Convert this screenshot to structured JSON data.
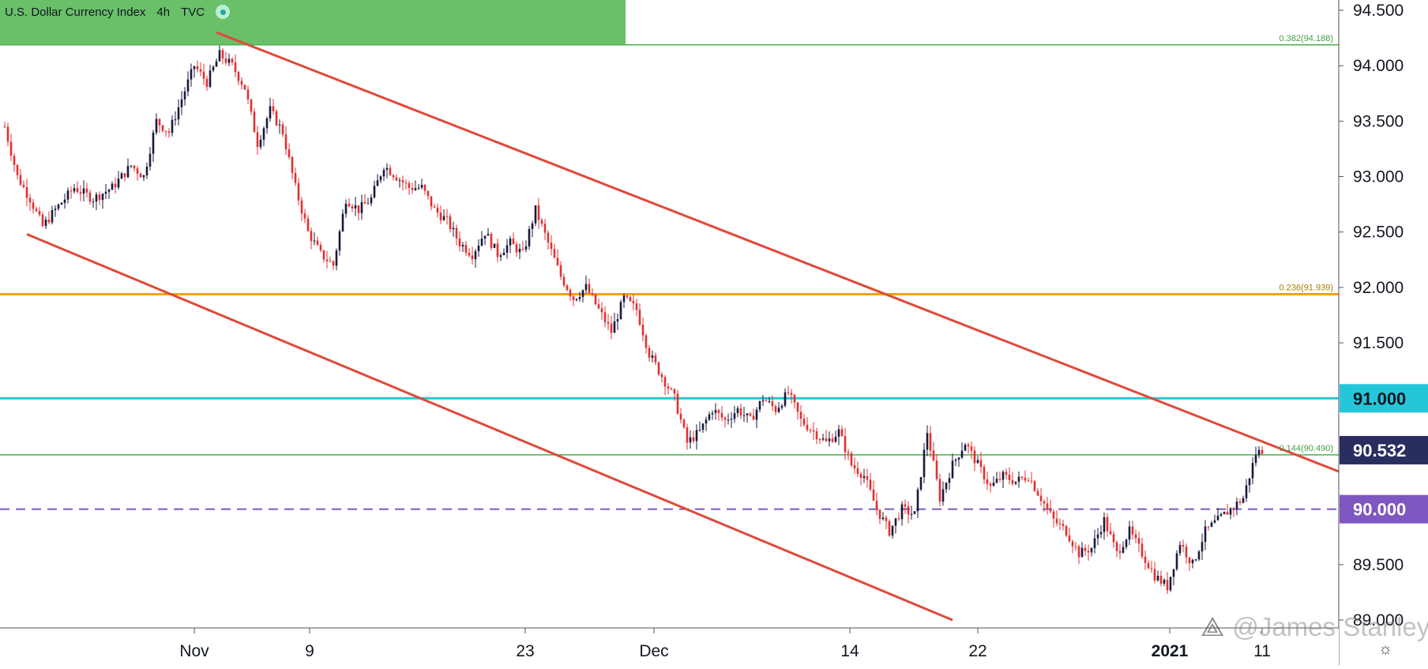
{
  "header": {
    "symbol": "U.S. Dollar Currency Index",
    "interval": "4h",
    "source": "TVC",
    "status_icon": "green-dot-icon"
  },
  "watermark": {
    "logo_icon": "tradingview-logo-icon",
    "text": "@James Stanley"
  },
  "settings_icon": "gear-icon",
  "colors": {
    "up_candle": "#1a1a3e",
    "down_candle": "#e03131",
    "channel": "#e0493a",
    "fib_zone": "#6abf69",
    "fib_line": "#4caf50",
    "fib_orange": "#f0a30a",
    "cyan": "#26c6da",
    "purple": "#7e57c2",
    "last_price": "#2a2e5f"
  },
  "chart_data": {
    "type": "candlestick",
    "title": "U.S. Dollar Currency Index 4h TVC",
    "ylim": [
      89.0,
      94.6
    ],
    "y_ticks": [
      "94.500",
      "94.000",
      "93.500",
      "93.000",
      "92.500",
      "92.000",
      "91.500",
      "91.000",
      "90.500",
      "90.000",
      "89.500",
      "89.000"
    ],
    "x_ticks": [
      "Nov",
      "9",
      "23",
      "Dec",
      "14",
      "22",
      "2021",
      "11"
    ],
    "last_price": "90.532",
    "horizontal_levels": [
      {
        "label": "0.382(94.188)",
        "value": 94.188,
        "kind": "fib"
      },
      {
        "label": "0.236(91.939)",
        "value": 91.939,
        "kind": "fib-orange"
      },
      {
        "label": "0.144(90.490)",
        "value": 90.49,
        "kind": "fib"
      },
      {
        "label": "91.000",
        "value": 91.0,
        "kind": "support-resistance"
      },
      {
        "label": "90.000",
        "value": 90.0,
        "kind": "dashed"
      }
    ],
    "price_path": [
      [
        0,
        93.45
      ],
      [
        4,
        93.0
      ],
      [
        8,
        92.8
      ],
      [
        12,
        92.55
      ],
      [
        16,
        92.7
      ],
      [
        22,
        92.9
      ],
      [
        28,
        92.8
      ],
      [
        34,
        92.9
      ],
      [
        40,
        93.1
      ],
      [
        44,
        93.0
      ],
      [
        48,
        93.5
      ],
      [
        52,
        93.4
      ],
      [
        56,
        93.7
      ],
      [
        60,
        94.0
      ],
      [
        64,
        93.85
      ],
      [
        68,
        94.1
      ],
      [
        72,
        94.0
      ],
      [
        76,
        93.8
      ],
      [
        80,
        93.3
      ],
      [
        84,
        93.6
      ],
      [
        88,
        93.4
      ],
      [
        92,
        92.9
      ],
      [
        96,
        92.5
      ],
      [
        100,
        92.3
      ],
      [
        104,
        92.2
      ],
      [
        108,
        92.8
      ],
      [
        112,
        92.7
      ],
      [
        116,
        92.8
      ],
      [
        120,
        93.1
      ],
      [
        124,
        93.0
      ],
      [
        128,
        92.9
      ],
      [
        132,
        92.9
      ],
      [
        136,
        92.7
      ],
      [
        140,
        92.6
      ],
      [
        144,
        92.4
      ],
      [
        148,
        92.3
      ],
      [
        152,
        92.5
      ],
      [
        156,
        92.3
      ],
      [
        160,
        92.4
      ],
      [
        164,
        92.3
      ],
      [
        168,
        92.7
      ],
      [
        172,
        92.4
      ],
      [
        176,
        92.1
      ],
      [
        180,
        91.9
      ],
      [
        184,
        92.0
      ],
      [
        188,
        91.8
      ],
      [
        192,
        91.6
      ],
      [
        196,
        91.9
      ],
      [
        200,
        91.8
      ],
      [
        204,
        91.4
      ],
      [
        208,
        91.2
      ],
      [
        212,
        91.0
      ],
      [
        216,
        90.6
      ],
      [
        220,
        90.7
      ],
      [
        224,
        90.9
      ],
      [
        228,
        90.8
      ],
      [
        232,
        90.9
      ],
      [
        236,
        90.8
      ],
      [
        240,
        91.0
      ],
      [
        244,
        90.9
      ],
      [
        248,
        91.05
      ],
      [
        252,
        90.8
      ],
      [
        256,
        90.7
      ],
      [
        260,
        90.6
      ],
      [
        264,
        90.7
      ],
      [
        268,
        90.4
      ],
      [
        272,
        90.3
      ],
      [
        276,
        90.0
      ],
      [
        280,
        89.8
      ],
      [
        284,
        90.0
      ],
      [
        288,
        89.95
      ],
      [
        292,
        90.7
      ],
      [
        296,
        90.1
      ],
      [
        300,
        90.4
      ],
      [
        304,
        90.6
      ],
      [
        308,
        90.4
      ],
      [
        312,
        90.2
      ],
      [
        316,
        90.3
      ],
      [
        320,
        90.25
      ],
      [
        324,
        90.3
      ],
      [
        328,
        90.1
      ],
      [
        332,
        89.9
      ],
      [
        336,
        89.8
      ],
      [
        340,
        89.6
      ],
      [
        344,
        89.65
      ],
      [
        348,
        89.9
      ],
      [
        352,
        89.6
      ],
      [
        356,
        89.8
      ],
      [
        360,
        89.6
      ],
      [
        364,
        89.4
      ],
      [
        368,
        89.3
      ],
      [
        372,
        89.7
      ],
      [
        376,
        89.5
      ],
      [
        380,
        89.8
      ],
      [
        384,
        89.9
      ],
      [
        388,
        90.0
      ],
      [
        392,
        90.1
      ],
      [
        396,
        90.5
      ],
      [
        398,
        90.532
      ]
    ],
    "channel_lines": [
      {
        "from": [
          67,
          94.3
        ],
        "to": [
          520,
          89.25
        ]
      },
      {
        "from": [
          7,
          92.48
        ],
        "to": [
          300,
          89.0
        ]
      }
    ]
  }
}
